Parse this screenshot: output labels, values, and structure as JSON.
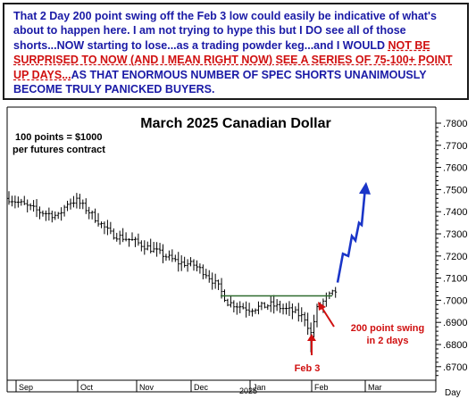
{
  "note": {
    "part1": "That 2 Day 200 point swing off the Feb 3 low could easily be indicative of what's about to happen here. I am not trying to hype this but I DO see all of those shorts...NOW starting to lose...as a trading powder keg...and I WOULD ",
    "part2_red": "NOT BE SURPRISED TO NOW (AND I MEAN RIGHT NOW) SEE A SERIES OF 75-100+ POINT UP DAYS...",
    "part3": "AS THAT ENORMOUS NUMBER OF SPEC SHORTS UNANIMOUSLY BECOME TRULY PANICKED BUYERS."
  },
  "colors": {
    "note_text": "#1a1aa6",
    "note_emphasis": "#d01010",
    "bars": "#000000",
    "resistance": "#2e6b2e",
    "projection": "#1a35c8",
    "callout": "#d01010"
  },
  "chart_data": {
    "type": "ohlc",
    "title": "March 2025 Canadian Dollar",
    "subtitle_line1": "100 points = $1000",
    "subtitle_line2": "per futures contract",
    "y_axis": {
      "position": "right",
      "ylim": [
        0.66,
        0.788
      ],
      "ticks": [
        ".6700",
        ".6800",
        ".6900",
        ".7000",
        ".7100",
        ".7200",
        ".7300",
        ".7400",
        ".7500",
        ".7600",
        ".7700",
        ".7800"
      ]
    },
    "x_axis": {
      "months": [
        "Sep",
        "Oct",
        "Nov",
        "Dec",
        "Jan",
        "Feb",
        "Mar"
      ],
      "year_label": "2025",
      "period_label": "Day"
    },
    "series_close_waypoints": [
      {
        "t": 0,
        "v": 0.746
      },
      {
        "t": 5,
        "v": 0.743
      },
      {
        "t": 10,
        "v": 0.74
      },
      {
        "t": 16,
        "v": 0.738
      },
      {
        "t": 19,
        "v": 0.744
      },
      {
        "t": 22,
        "v": 0.745
      },
      {
        "t": 26,
        "v": 0.74
      },
      {
        "t": 33,
        "v": 0.73
      },
      {
        "t": 40,
        "v": 0.727
      },
      {
        "t": 48,
        "v": 0.722
      },
      {
        "t": 55,
        "v": 0.717
      },
      {
        "t": 60,
        "v": 0.716
      },
      {
        "t": 64,
        "v": 0.712
      },
      {
        "t": 68,
        "v": 0.706
      },
      {
        "t": 71,
        "v": 0.699
      },
      {
        "t": 78,
        "v": 0.696
      },
      {
        "t": 85,
        "v": 0.698
      },
      {
        "t": 92,
        "v": 0.695
      },
      {
        "t": 96,
        "v": 0.692
      },
      {
        "t": 98,
        "v": 0.685
      },
      {
        "t": 100,
        "v": 0.696
      },
      {
        "t": 103,
        "v": 0.701
      },
      {
        "t": 106,
        "v": 0.704
      }
    ],
    "resistance_level": 0.702,
    "projection_path": [
      0.708,
      0.721,
      0.72,
      0.729,
      0.727,
      0.735,
      0.734,
      0.751
    ],
    "annotations": {
      "swing": "200 point swing",
      "swing2": "in 2 days",
      "low": "Feb 3"
    }
  }
}
